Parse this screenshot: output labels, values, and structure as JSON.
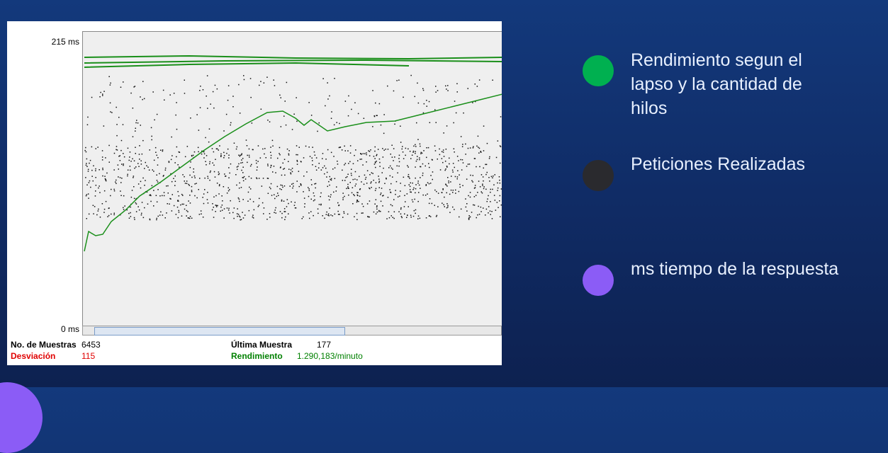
{
  "graph": {
    "y_top": "215 ms",
    "y_bottom": "0 ms",
    "stats": [
      {
        "label": "No. de Muestras",
        "value": "6453",
        "color": "#000000"
      },
      {
        "label": "Última Muestra",
        "value": "177",
        "color": "#000000"
      },
      {
        "label": "Desviación",
        "value": "115",
        "color": "#e00000"
      },
      {
        "label": "Rendimiento",
        "value": "1.290,183/minuto",
        "color": "#008000"
      }
    ]
  },
  "legend": [
    {
      "label": "Rendimiento segun el lapso y la cantidad de hilos",
      "color": "#00b050"
    },
    {
      "label": "Peticiones Realizadas",
      "color": "#2a2a2e"
    },
    {
      "label": "ms tiempo de la respuesta",
      "color": "#8b5cf6"
    }
  ]
}
